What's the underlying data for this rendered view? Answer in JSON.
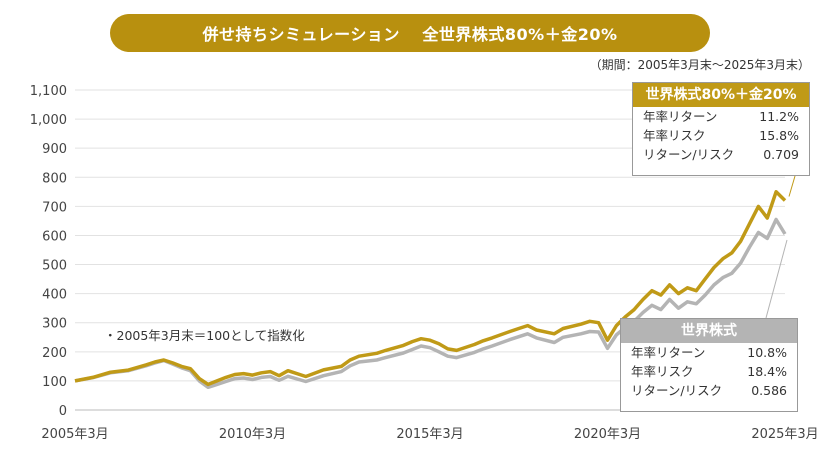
{
  "title": "併せ持ちシミュレーション　 全世界株式80%＋金20%",
  "period": "（期間：2005年3月末～2025年3月末）",
  "note": "・2005年3月末＝100として指数化",
  "colors": {
    "gold": "#C09A17",
    "gray": "#B4B4B4",
    "title_bg": "#B8900F",
    "grid": "#E2E2E2"
  },
  "chart_data": {
    "type": "line",
    "y_ticks": [
      "0",
      "100",
      "200",
      "300",
      "400",
      "500",
      "600",
      "700",
      "800",
      "900",
      "1,000",
      "1,100"
    ],
    "x_ticks": [
      "2005年3月",
      "2010年3月",
      "2015年3月",
      "2020年3月",
      "2025年3月"
    ],
    "ylim": [
      0,
      1100
    ],
    "xlim": [
      2005.25,
      2025.25
    ],
    "grid": true,
    "series": [
      {
        "name": "世界株式80%＋金20%",
        "x": [
          2005.25,
          2005.75,
          2006.25,
          2006.75,
          2007.25,
          2007.5,
          2007.75,
          2008.0,
          2008.25,
          2008.5,
          2008.75,
          2009.0,
          2009.25,
          2009.5,
          2009.75,
          2010.0,
          2010.25,
          2010.5,
          2010.75,
          2011.0,
          2011.25,
          2011.75,
          2012.25,
          2012.75,
          2013.0,
          2013.25,
          2013.75,
          2014.0,
          2014.5,
          2014.75,
          2015.0,
          2015.25,
          2015.5,
          2015.75,
          2016.0,
          2016.5,
          2016.75,
          2017.0,
          2017.5,
          2017.75,
          2018.0,
          2018.25,
          2018.75,
          2019.0,
          2019.5,
          2019.75,
          2020.0,
          2020.25,
          2020.5,
          2020.75,
          2021.0,
          2021.25,
          2021.5,
          2021.75,
          2022.0,
          2022.25,
          2022.5,
          2022.75,
          2023.0,
          2023.25,
          2023.5,
          2023.75,
          2024.0,
          2024.25,
          2024.5,
          2024.75,
          2025.0,
          2025.25
        ],
        "values": [
          100,
          112,
          130,
          137,
          155,
          165,
          172,
          162,
          150,
          142,
          108,
          88,
          100,
          112,
          122,
          125,
          120,
          128,
          132,
          118,
          135,
          115,
          138,
          150,
          172,
          185,
          195,
          205,
          222,
          235,
          245,
          240,
          228,
          210,
          205,
          225,
          238,
          248,
          270,
          280,
          290,
          275,
          262,
          280,
          295,
          305,
          300,
          240,
          290,
          320,
          345,
          380,
          410,
          395,
          430,
          400,
          420,
          410,
          450,
          490,
          520,
          540,
          580,
          640,
          700,
          660,
          750,
          720
        ]
      },
      {
        "name": "世界株式",
        "x": [
          2005.25,
          2005.75,
          2006.25,
          2006.75,
          2007.25,
          2007.5,
          2007.75,
          2008.0,
          2008.25,
          2008.5,
          2008.75,
          2009.0,
          2009.25,
          2009.5,
          2009.75,
          2010.0,
          2010.25,
          2010.5,
          2010.75,
          2011.0,
          2011.25,
          2011.75,
          2012.25,
          2012.75,
          2013.0,
          2013.25,
          2013.75,
          2014.0,
          2014.5,
          2014.75,
          2015.0,
          2015.25,
          2015.5,
          2015.75,
          2016.0,
          2016.5,
          2016.75,
          2017.0,
          2017.5,
          2017.75,
          2018.0,
          2018.25,
          2018.75,
          2019.0,
          2019.5,
          2019.75,
          2020.0,
          2020.25,
          2020.5,
          2020.75,
          2021.0,
          2021.25,
          2021.5,
          2021.75,
          2022.0,
          2022.25,
          2022.5,
          2022.75,
          2023.0,
          2023.25,
          2023.5,
          2023.75,
          2024.0,
          2024.25,
          2024.5,
          2024.75,
          2025.0,
          2025.25
        ],
        "values": [
          100,
          111,
          128,
          135,
          152,
          162,
          170,
          158,
          145,
          135,
          100,
          78,
          88,
          98,
          108,
          110,
          105,
          112,
          115,
          102,
          116,
          98,
          118,
          132,
          152,
          165,
          172,
          180,
          196,
          208,
          220,
          214,
          200,
          185,
          180,
          198,
          210,
          220,
          242,
          252,
          262,
          248,
          232,
          250,
          262,
          270,
          268,
          212,
          258,
          284,
          305,
          335,
          360,
          345,
          380,
          350,
          372,
          365,
          395,
          430,
          455,
          470,
          505,
          560,
          610,
          590,
          655,
          605
        ]
      }
    ]
  },
  "box_mix": {
    "title": "世界株式80%＋金20%",
    "rows": [
      {
        "label": "年率リターン",
        "value": "11.2%"
      },
      {
        "label": "年率リスク",
        "value": "15.8%"
      },
      {
        "label": "リターン/リスク",
        "value": "0.709"
      }
    ]
  },
  "box_stock": {
    "title": "世界株式",
    "rows": [
      {
        "label": "年率リターン",
        "value": "10.8%"
      },
      {
        "label": "年率リスク",
        "value": "18.4%"
      },
      {
        "label": "リターン/リスク",
        "value": "0.586"
      }
    ]
  }
}
